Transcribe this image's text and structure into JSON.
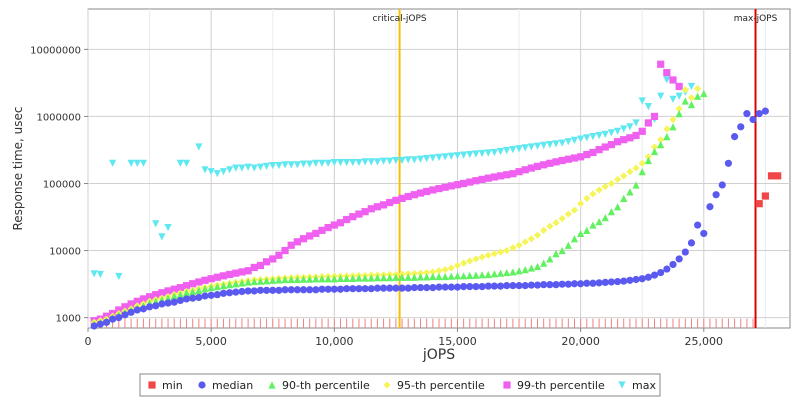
{
  "chart_data": {
    "type": "scatter",
    "title": "",
    "xlabel": "jOPS",
    "ylabel": "Response time, usec",
    "y_scale": "log",
    "xlim": [
      0,
      28500
    ],
    "ylim": [
      700,
      40000000
    ],
    "grid": true,
    "x_ticks": [
      0,
      5000,
      10000,
      15000,
      20000,
      25000
    ],
    "x_tick_labels": [
      "0",
      "5,000",
      "10,000",
      "15,000",
      "20,000",
      "25,000"
    ],
    "y_ticks": [
      1000,
      10000,
      100000,
      1000000,
      10000000
    ],
    "y_tick_labels": [
      "1000",
      "10000",
      "100000",
      "1000000",
      "10000000"
    ],
    "legend_position": "bottom",
    "colors": {
      "min": "#f04848",
      "median": "#5a5af0",
      "p90": "#60f060",
      "p95": "#f5f55a",
      "p99": "#f060f0",
      "max": "#60e8f0",
      "critical_line": "#f5c000",
      "max_line": "#e00000",
      "drop_lines": "#f08080"
    },
    "vertical_lines": [
      {
        "label": "critical-jOPS",
        "x": 12650,
        "color": "#f5c000"
      },
      {
        "label": "max-jOPS",
        "x": 27100,
        "color": "#e00000"
      }
    ],
    "legend": [
      {
        "key": "min",
        "label": "min",
        "marker": "square",
        "color": "#f04848"
      },
      {
        "key": "median",
        "label": "median",
        "marker": "circle",
        "color": "#5a5af0"
      },
      {
        "key": "p90",
        "label": "90-th percentile",
        "marker": "triangle-up",
        "color": "#60f060"
      },
      {
        "key": "p95",
        "label": "95-th percentile",
        "marker": "diamond",
        "color": "#f5f55a"
      },
      {
        "key": "p99",
        "label": "99-th percentile",
        "marker": "square",
        "color": "#f060f0"
      },
      {
        "key": "max",
        "label": "max",
        "marker": "triangle-down",
        "color": "#60e8f0"
      }
    ],
    "x": [
      250,
      500,
      750,
      1000,
      1250,
      1500,
      1750,
      2000,
      2250,
      2500,
      2750,
      3000,
      3250,
      3500,
      3750,
      4000,
      4250,
      4500,
      4750,
      5000,
      5250,
      5500,
      5750,
      6000,
      6250,
      6500,
      6750,
      7000,
      7250,
      7500,
      7750,
      8000,
      8250,
      8500,
      8750,
      9000,
      9250,
      9500,
      9750,
      10000,
      10250,
      10500,
      10750,
      11000,
      11250,
      11500,
      11750,
      12000,
      12250,
      12500,
      12750,
      13000,
      13250,
      13500,
      13750,
      14000,
      14250,
      14500,
      14750,
      15000,
      15250,
      15500,
      15750,
      16000,
      16250,
      16500,
      16750,
      17000,
      17250,
      17500,
      17750,
      18000,
      18250,
      18500,
      18750,
      19000,
      19250,
      19500,
      19750,
      20000,
      20250,
      20500,
      20750,
      21000,
      21250,
      21500,
      21750,
      22000,
      22250,
      22500,
      22750,
      23000,
      23250,
      23500,
      23750,
      24000,
      24250,
      24500,
      24750,
      25000,
      25250,
      25500,
      25750,
      26000,
      26250,
      26500,
      26750,
      27000,
      27250,
      27500,
      27750,
      28000,
      28250,
      28500
    ],
    "series": [
      {
        "key": "min",
        "values": [
          null,
          null,
          null,
          null,
          null,
          null,
          null,
          null,
          null,
          null,
          null,
          null,
          null,
          null,
          null,
          null,
          null,
          null,
          null,
          null,
          null,
          null,
          null,
          null,
          null,
          null,
          null,
          null,
          null,
          null,
          null,
          null,
          null,
          null,
          null,
          null,
          null,
          null,
          null,
          null,
          null,
          null,
          null,
          null,
          null,
          null,
          null,
          null,
          null,
          null,
          null,
          null,
          null,
          null,
          null,
          null,
          null,
          null,
          null,
          null,
          null,
          null,
          null,
          null,
          null,
          null,
          null,
          null,
          null,
          null,
          null,
          null,
          null,
          null,
          null,
          null,
          null,
          null,
          null,
          null,
          null,
          null,
          null,
          null,
          null,
          null,
          null,
          null,
          null,
          null,
          null,
          null,
          null,
          null,
          null,
          null,
          null,
          null,
          null,
          null,
          null,
          null,
          null,
          null,
          null,
          null,
          null,
          null,
          50000,
          65000,
          130000,
          130000,
          null,
          null
        ]
      },
      {
        "key": "median",
        "values": [
          750,
          800,
          850,
          950,
          1000,
          1100,
          1200,
          1300,
          1350,
          1450,
          1500,
          1600,
          1650,
          1700,
          1800,
          1900,
          1950,
          2000,
          2100,
          2150,
          2200,
          2300,
          2350,
          2400,
          2450,
          2500,
          2500,
          2550,
          2550,
          2550,
          2550,
          2600,
          2600,
          2600,
          2600,
          2600,
          2600,
          2650,
          2650,
          2650,
          2650,
          2700,
          2700,
          2700,
          2700,
          2700,
          2750,
          2750,
          2750,
          2750,
          2750,
          2750,
          2800,
          2800,
          2800,
          2800,
          2850,
          2850,
          2850,
          2850,
          2900,
          2900,
          2900,
          2900,
          2950,
          2950,
          2950,
          3000,
          3000,
          3000,
          3000,
          3050,
          3050,
          3100,
          3100,
          3100,
          3150,
          3150,
          3200,
          3200,
          3250,
          3250,
          3300,
          3350,
          3400,
          3450,
          3500,
          3600,
          3700,
          3800,
          4000,
          4300,
          4700,
          5300,
          6200,
          7500,
          9500,
          13000,
          24000,
          18000,
          45000,
          68000,
          95000,
          200000,
          500000,
          700000,
          1100000,
          900000,
          1100000,
          1200000,
          null,
          null,
          null,
          null
        ]
      },
      {
        "key": "p90",
        "values": [
          800,
          850,
          900,
          1000,
          1100,
          1200,
          1300,
          1400,
          1500,
          1650,
          1750,
          1850,
          1950,
          2100,
          2200,
          2350,
          2450,
          2550,
          2700,
          2800,
          2900,
          3000,
          3100,
          3200,
          3300,
          3400,
          3450,
          3500,
          3550,
          3600,
          3650,
          3700,
          3700,
          3700,
          3750,
          3750,
          3800,
          3800,
          3800,
          3800,
          3850,
          3850,
          3850,
          3900,
          3900,
          3900,
          3950,
          3950,
          3950,
          4000,
          4000,
          4000,
          4000,
          4050,
          4050,
          4100,
          4100,
          4100,
          4150,
          4200,
          4200,
          4250,
          4300,
          4350,
          4400,
          4500,
          4600,
          4700,
          4800,
          5000,
          5200,
          5500,
          5800,
          6500,
          7500,
          9000,
          10000,
          12000,
          15000,
          18000,
          20000,
          24000,
          27000,
          31000,
          38000,
          45000,
          60000,
          75000,
          95000,
          150000,
          220000,
          300000,
          380000,
          500000,
          700000,
          1100000,
          1700000,
          1500000,
          2000000,
          2200000,
          null,
          null,
          null,
          null,
          null,
          null,
          null,
          null,
          null,
          null,
          null,
          null,
          null,
          null
        ]
      },
      {
        "key": "p95",
        "values": [
          850,
          900,
          950,
          1050,
          1150,
          1250,
          1350,
          1500,
          1600,
          1750,
          1850,
          1950,
          2050,
          2200,
          2300,
          2450,
          2550,
          2700,
          2800,
          2950,
          3050,
          3150,
          3250,
          3350,
          3450,
          3550,
          3650,
          3700,
          3750,
          3800,
          3850,
          3900,
          3950,
          4000,
          4000,
          4050,
          4050,
          4100,
          4100,
          4150,
          4150,
          4200,
          4200,
          4250,
          4250,
          4300,
          4300,
          4350,
          4400,
          4400,
          4450,
          4500,
          4550,
          4600,
          4700,
          4800,
          5000,
          5200,
          5500,
          6000,
          6500,
          7000,
          7500,
          8000,
          8500,
          9000,
          9500,
          10000,
          11000,
          12000,
          13500,
          15000,
          17000,
          20000,
          23000,
          26000,
          30000,
          35000,
          40000,
          50000,
          60000,
          70000,
          80000,
          90000,
          100000,
          115000,
          130000,
          150000,
          170000,
          200000,
          250000,
          350000,
          450000,
          650000,
          900000,
          1300000,
          2500000,
          1900000,
          2600000,
          null,
          null,
          null,
          null,
          null,
          null,
          null,
          null,
          null,
          null,
          null,
          null,
          null,
          null,
          null
        ]
      },
      {
        "key": "p99",
        "values": [
          900,
          950,
          1050,
          1150,
          1300,
          1450,
          1600,
          1750,
          1900,
          2050,
          2200,
          2350,
          2500,
          2650,
          2800,
          3000,
          3200,
          3400,
          3600,
          3800,
          4000,
          4200,
          4400,
          4600,
          4800,
          5000,
          5600,
          6000,
          6800,
          7500,
          8500,
          10000,
          12000,
          13500,
          15000,
          16500,
          18000,
          20000,
          22000,
          24000,
          26000,
          29000,
          32000,
          35000,
          38000,
          42000,
          45000,
          48000,
          52000,
          56000,
          60000,
          64000,
          68000,
          72000,
          76000,
          80000,
          84000,
          88000,
          92000,
          96000,
          100000,
          105000,
          110000,
          115000,
          120000,
          125000,
          130000,
          135000,
          140000,
          150000,
          160000,
          170000,
          180000,
          190000,
          200000,
          210000,
          220000,
          230000,
          240000,
          250000,
          270000,
          290000,
          320000,
          350000,
          380000,
          420000,
          450000,
          480000,
          520000,
          600000,
          800000,
          1000000,
          6000000,
          4500000,
          3500000,
          2800000,
          null,
          null,
          null,
          null,
          null,
          null,
          null,
          null,
          null,
          null,
          null,
          null,
          null,
          null,
          null,
          null,
          null,
          null
        ]
      },
      {
        "key": "max",
        "values": [
          4500,
          4400,
          null,
          200000,
          4100,
          null,
          200000,
          200000,
          200000,
          null,
          25000,
          16000,
          22000,
          null,
          200000,
          200000,
          null,
          350000,
          160000,
          150000,
          140000,
          150000,
          160000,
          170000,
          170000,
          175000,
          170000,
          175000,
          180000,
          185000,
          185000,
          190000,
          190000,
          190000,
          195000,
          195000,
          200000,
          200000,
          200000,
          205000,
          205000,
          205000,
          205000,
          205000,
          210000,
          210000,
          210000,
          215000,
          215000,
          220000,
          220000,
          225000,
          225000,
          230000,
          235000,
          240000,
          245000,
          250000,
          255000,
          260000,
          265000,
          270000,
          275000,
          280000,
          285000,
          290000,
          300000,
          310000,
          320000,
          330000,
          340000,
          350000,
          360000,
          370000,
          380000,
          390000,
          400000,
          420000,
          440000,
          460000,
          480000,
          500000,
          520000,
          540000,
          570000,
          600000,
          650000,
          700000,
          800000,
          1700000,
          1400000,
          900000,
          2000000,
          3500000,
          1800000,
          2000000,
          2300000,
          2800000,
          null,
          null,
          null,
          null,
          null,
          null,
          null,
          null,
          null,
          null,
          null,
          null,
          null,
          null,
          null,
          null
        ]
      }
    ]
  }
}
